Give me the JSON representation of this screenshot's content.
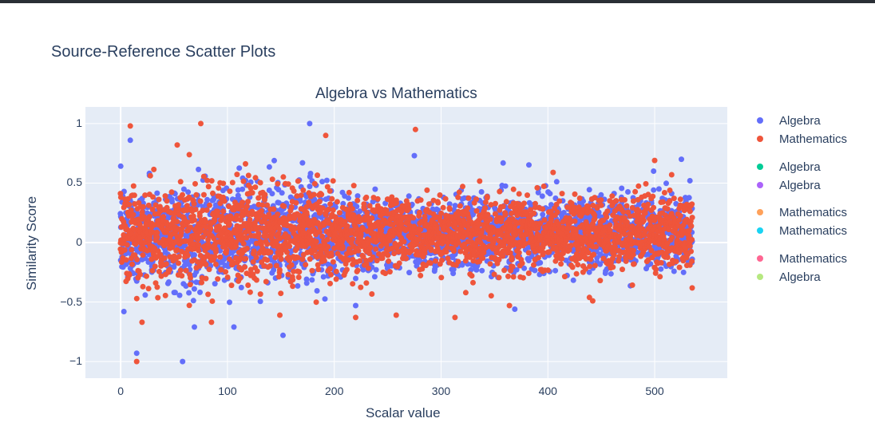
{
  "page": {
    "title": "Source-Reference Scatter Plots"
  },
  "chart_data": {
    "type": "scatter",
    "title": "Algebra vs Mathematics",
    "xlabel": "Scalar value",
    "ylabel": "Similarity Score",
    "xlim": [
      -33,
      568
    ],
    "ylim": [
      -1.14,
      1.14
    ],
    "x_ticks": [
      0,
      100,
      200,
      300,
      400,
      500
    ],
    "x_tick_labels": [
      "0",
      "100",
      "200",
      "300",
      "400",
      "500"
    ],
    "y_ticks": [
      1,
      0.5,
      0,
      -0.5,
      -1
    ],
    "y_tick_labels": [
      "1",
      "0.5",
      "0",
      "−0.5",
      "−1"
    ],
    "grid": true,
    "legend_position": "right",
    "plot_background": "#e5ecf6",
    "series": [
      {
        "name": "Algebra",
        "color": "#636efa",
        "points_per_x": 5,
        "x_range": [
          0,
          535
        ],
        "y_center": 0.08,
        "y_spread": 0.15,
        "y_range": [
          -1,
          1
        ],
        "notable_points": [
          {
            "x": 177,
            "y": 1.0
          },
          {
            "x": 58,
            "y": -1.0
          },
          {
            "x": 15,
            "y": -0.93
          },
          {
            "x": 9,
            "y": 0.86
          },
          {
            "x": 275,
            "y": 0.73
          },
          {
            "x": 525,
            "y": 0.7
          },
          {
            "x": 152,
            "y": -0.78
          },
          {
            "x": 106,
            "y": -0.71
          },
          {
            "x": 69,
            "y": -0.71
          },
          {
            "x": 3,
            "y": -0.58
          },
          {
            "x": 369,
            "y": -0.56
          },
          {
            "x": 220,
            "y": -0.53
          },
          {
            "x": 499,
            "y": 0.6
          },
          {
            "x": 533,
            "y": 0.52
          }
        ]
      },
      {
        "name": "Mathematics",
        "color": "#ef553b",
        "points_per_x": 5,
        "x_range": [
          0,
          535
        ],
        "y_center": 0.08,
        "y_spread": 0.15,
        "y_range": [
          -1,
          1
        ],
        "notable_points": [
          {
            "x": 75,
            "y": 1.0
          },
          {
            "x": 15,
            "y": -1.0
          },
          {
            "x": 9,
            "y": 0.98
          },
          {
            "x": 276,
            "y": 0.95
          },
          {
            "x": 192,
            "y": 0.9
          },
          {
            "x": 53,
            "y": 0.82
          },
          {
            "x": 500,
            "y": 0.69
          },
          {
            "x": 85,
            "y": -0.67
          },
          {
            "x": 20,
            "y": -0.67
          },
          {
            "x": 220,
            "y": -0.63
          },
          {
            "x": 313,
            "y": -0.63
          },
          {
            "x": 258,
            "y": -0.61
          },
          {
            "x": 149,
            "y": -0.61
          },
          {
            "x": 442,
            "y": -0.49
          },
          {
            "x": 364,
            "y": -0.53
          }
        ]
      }
    ],
    "legend": [
      {
        "name": "Algebra",
        "color": "#636efa"
      },
      {
        "name": "Mathematics",
        "color": "#ef553b"
      },
      {
        "name": "Algebra",
        "color": "#00cc96"
      },
      {
        "name": "Algebra",
        "color": "#ab63fa"
      },
      {
        "name": "Mathematics",
        "color": "#ffa15a"
      },
      {
        "name": "Mathematics",
        "color": "#19d3f3"
      },
      {
        "name": "Mathematics",
        "color": "#ff6692"
      },
      {
        "name": "Algebra",
        "color": "#b6e880"
      }
    ]
  }
}
